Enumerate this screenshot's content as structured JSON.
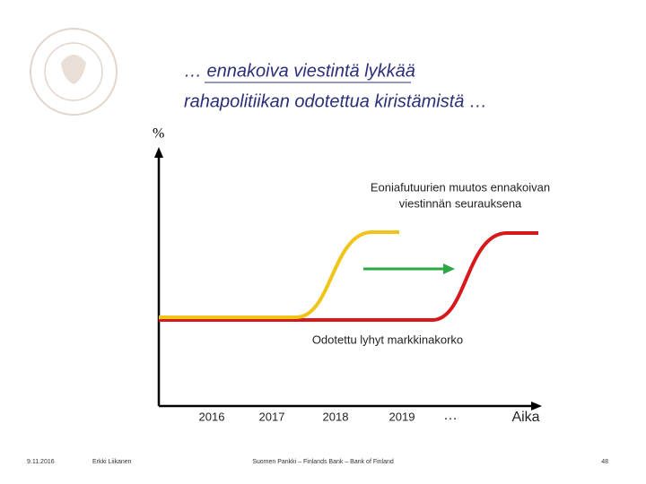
{
  "header": {
    "title_lines": [
      "… ennakoiva viestintä lykkää",
      "rahapolitiikan odotettua kiristämistä …"
    ]
  },
  "diagram": {
    "y_label": "%",
    "annotation_lines": [
      "Eoniafutuurien muutos ennakoivan",
      "viestinnän seurauksena"
    ],
    "baseline_label": "Odotettu lyhyt markkinakorko",
    "x_labels": [
      "2016",
      "2017",
      "2018",
      "2019",
      "…"
    ],
    "x_axis_label": "Aika"
  },
  "footer": {
    "date": "9.11.2016",
    "author": "Erkki Liikanen",
    "org": "Suomen Pankki – Finlands Bank – Bank of Finland",
    "page": "48"
  }
}
